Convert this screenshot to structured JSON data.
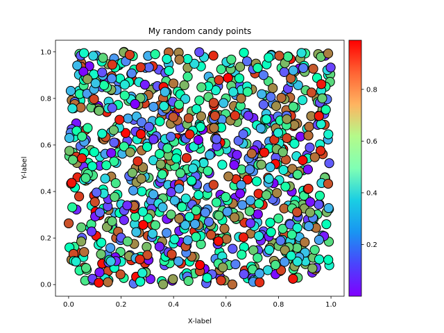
{
  "chart_data": {
    "type": "scatter",
    "title": "My random candy points",
    "xlabel": "X-label",
    "ylabel": "Y-label",
    "xlim": [
      -0.05,
      1.05
    ],
    "ylim": [
      -0.05,
      1.05
    ],
    "x_ticks": [
      "0.0",
      "0.2",
      "0.4",
      "0.6",
      "0.8",
      "1.0"
    ],
    "y_ticks": [
      "0.0",
      "0.2",
      "0.4",
      "0.6",
      "0.8",
      "1.0"
    ],
    "colorbar": {
      "colormap": "rainbow",
      "range": [
        0.0,
        0.99
      ],
      "ticks": [
        "0.2",
        "0.4",
        "0.6",
        "0.8"
      ]
    },
    "marker": {
      "edgecolor": "#000000"
    },
    "grid": false,
    "n_points": 1000,
    "distribution": "uniform",
    "sample_seed": 19680801
  }
}
